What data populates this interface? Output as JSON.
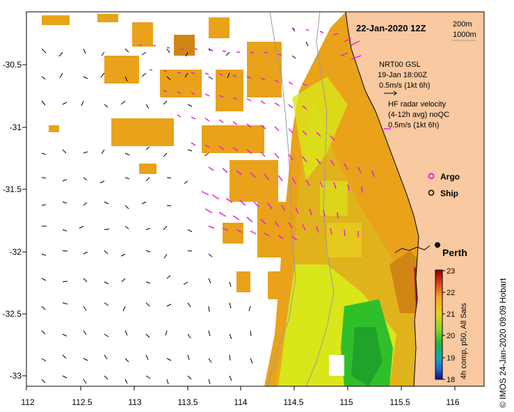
{
  "map": {
    "date_title": "22-Jan-2020 12Z",
    "depth_contours": [
      "200m",
      "1000m"
    ],
    "gsl_legend": [
      "NRT00 GSL",
      "19-Jan 18:00Z",
      "0.5m/s (1kt 6h)"
    ],
    "hf_legend": [
      "HF radar velocity",
      "(4-12h avg) noQC",
      "0.5m/s (1kt 6h)"
    ],
    "argo_label": "Argo",
    "ship_label": "Ship",
    "city_label": "Perth",
    "credit": "© IMOS 24-Jan-2020 09:09 Hobart",
    "colorbar_title": "4h comp, p50, All Sats",
    "colorbar_ticks": [
      "23",
      "22",
      "21",
      "20",
      "19",
      "18"
    ],
    "x_ticks": [
      "112",
      "112.5",
      "113",
      "113.5",
      "114",
      "114.5",
      "115",
      "115.5",
      "116"
    ],
    "y_ticks": [
      "-30.5",
      "-31",
      "-31.5",
      "-32",
      "-32.5",
      "-33"
    ],
    "colors": {
      "land": "#f9c9a1",
      "sst_orange": "#e9a21a",
      "sst_yellow": "#d9e61a",
      "sst_green": "#2fbf2a",
      "hf_vector": "#e81fe0",
      "gsl_vector": "#000000",
      "contour": "#9a9a9a"
    }
  }
}
